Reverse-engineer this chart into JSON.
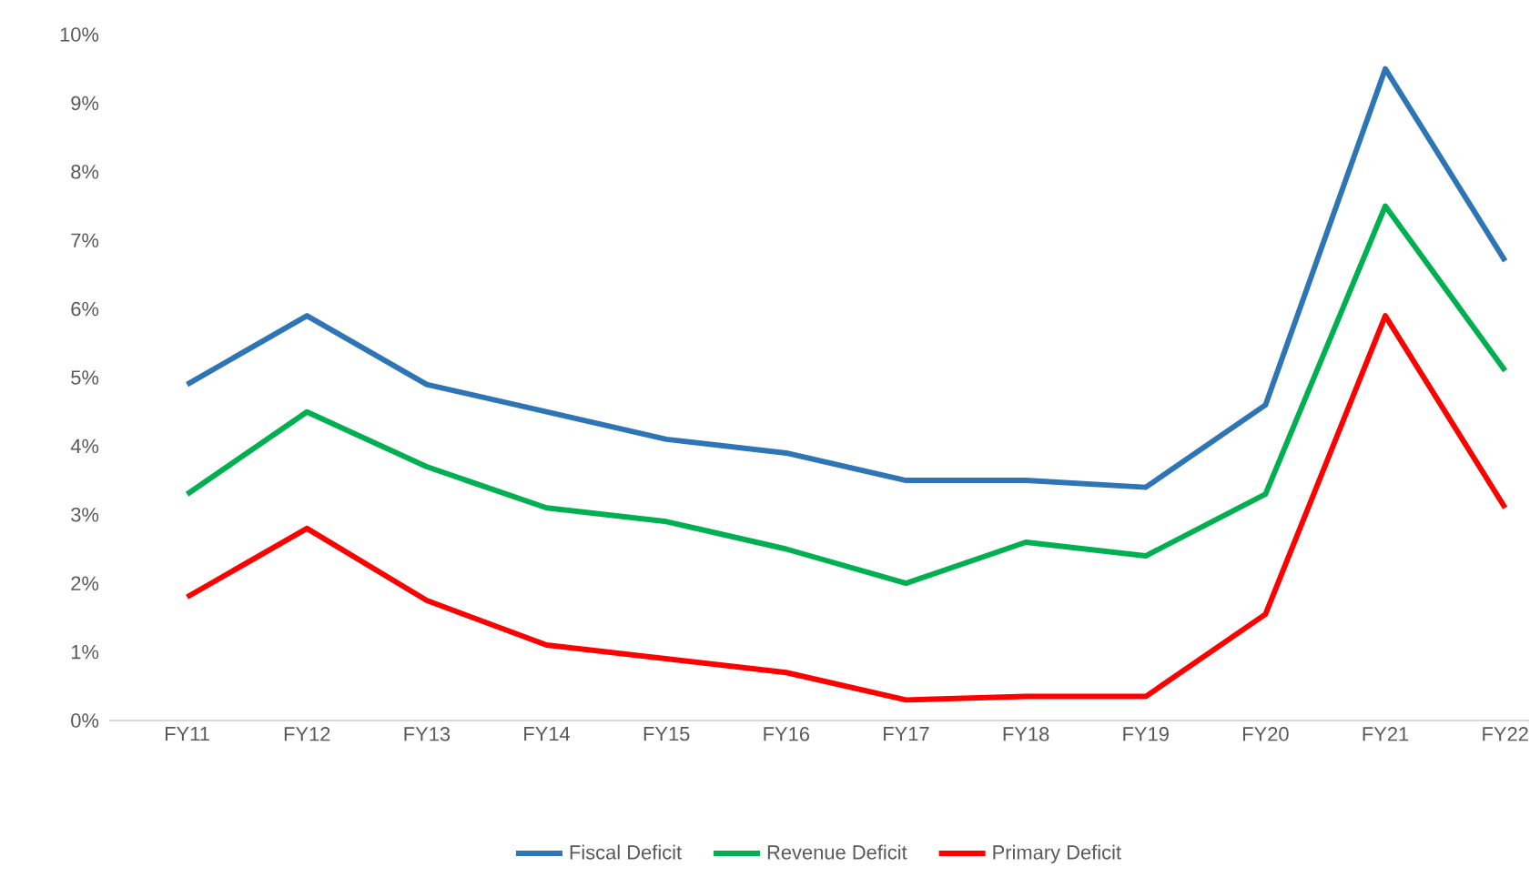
{
  "chart_data": {
    "type": "line",
    "categories": [
      "FY11",
      "FY12",
      "FY13",
      "FY14",
      "FY15",
      "FY16",
      "FY17",
      "FY18",
      "FY19",
      "FY20",
      "FY21",
      "FY22"
    ],
    "series": [
      {
        "name": "Fiscal Deficit",
        "color": "#2e75b6",
        "values": [
          4.9,
          5.9,
          4.9,
          4.5,
          4.1,
          3.9,
          3.5,
          3.5,
          3.4,
          4.6,
          9.5,
          6.7
        ]
      },
      {
        "name": "Revenue Deficit",
        "color": "#00b050",
        "values": [
          3.3,
          4.5,
          3.7,
          3.1,
          2.9,
          2.5,
          2.0,
          2.6,
          2.4,
          3.3,
          7.5,
          5.1
        ]
      },
      {
        "name": "Primary Deficit",
        "color": "#ff0000",
        "values": [
          1.8,
          2.8,
          1.75,
          1.1,
          0.9,
          0.7,
          0.3,
          0.35,
          0.35,
          1.55,
          5.9,
          3.1
        ]
      }
    ],
    "ylim": [
      0,
      10
    ],
    "yticks": [
      {
        "value": 0,
        "label": "0%"
      },
      {
        "value": 1,
        "label": "1%"
      },
      {
        "value": 2,
        "label": "2%"
      },
      {
        "value": 3,
        "label": "3%"
      },
      {
        "value": 4,
        "label": "4%"
      },
      {
        "value": 5,
        "label": "5%"
      },
      {
        "value": 6,
        "label": "6%"
      },
      {
        "value": 7,
        "label": "7%"
      },
      {
        "value": 8,
        "label": "8%"
      },
      {
        "value": 9,
        "label": "9%"
      },
      {
        "value": 10,
        "label": "10%"
      }
    ],
    "legend": "bottom",
    "line_style": "solid"
  }
}
